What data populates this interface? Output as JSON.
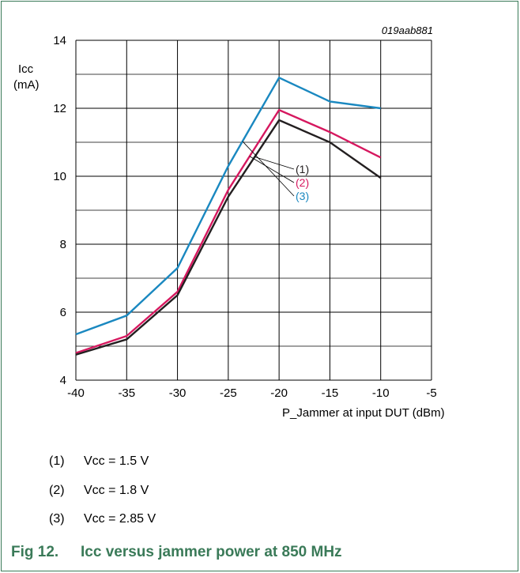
{
  "figure": {
    "id_label": "019aab881",
    "caption_number": "Fig 12.",
    "caption_text": "Icc versus jammer power at 850 MHz"
  },
  "legend": [
    {
      "num": "(1)",
      "text": "Vcc = 1.5 V"
    },
    {
      "num": "(2)",
      "text": "Vcc = 1.8 V"
    },
    {
      "num": "(3)",
      "text": "Vcc = 2.85 V"
    }
  ],
  "colors": {
    "series1": "#231f20",
    "series2": "#d6185f",
    "series3": "#1a88c0",
    "grid": "#000000",
    "caption": "#3a7a58"
  },
  "chart_data": {
    "type": "line",
    "title": "",
    "xlabel": "P_Jammer at input DUT (dBm)",
    "ylabel_line1": "Icc",
    "ylabel_line2": "(mA)",
    "xlim": [
      -40,
      -5
    ],
    "ylim": [
      4,
      14
    ],
    "xticks": [
      -40,
      -35,
      -30,
      -25,
      -20,
      -15,
      -10,
      -5
    ],
    "yticks": [
      4,
      6,
      8,
      10,
      12,
      14
    ],
    "grid": true,
    "series": [
      {
        "name": "(1)",
        "x": [
          -40,
          -35,
          -30,
          -25,
          -20,
          -15,
          -10
        ],
        "values": [
          4.75,
          5.2,
          6.5,
          9.4,
          11.65,
          11.0,
          9.95
        ]
      },
      {
        "name": "(2)",
        "x": [
          -40,
          -35,
          -30,
          -25,
          -20,
          -15,
          -10
        ],
        "values": [
          4.8,
          5.3,
          6.6,
          9.6,
          11.95,
          11.3,
          10.55
        ]
      },
      {
        "name": "(3)",
        "x": [
          -40,
          -35,
          -30,
          -25,
          -20,
          -15,
          -10
        ],
        "values": [
          5.35,
          5.9,
          7.3,
          10.3,
          12.9,
          12.2,
          12.0
        ]
      }
    ]
  }
}
